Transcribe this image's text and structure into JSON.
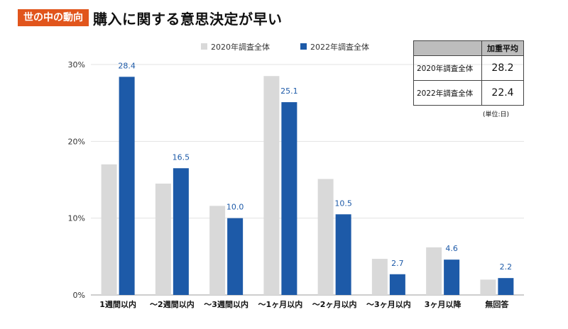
{
  "header": {
    "tag": "世の中の動向",
    "title": "購入に関する意思決定が早い"
  },
  "chart_data": {
    "type": "bar",
    "categories": [
      "1週間以内",
      "〜2週間以内",
      "〜3週間以内",
      "〜1ヶ月以内",
      "〜2ヶ月以内",
      "〜3ヶ月以内",
      "3ヶ月以降",
      "無回答"
    ],
    "series": [
      {
        "name": "2020年調査全体",
        "values": [
          17.0,
          14.5,
          11.6,
          28.5,
          15.1,
          4.7,
          6.2,
          2.0
        ],
        "color": "#d9d9d9"
      },
      {
        "name": "2022年調査全体",
        "values": [
          28.4,
          16.5,
          10.0,
          25.1,
          10.5,
          2.7,
          4.6,
          2.2
        ],
        "color": "#1d5aa8",
        "labels": [
          "28.4",
          "16.5",
          "10.0",
          "25.1",
          "10.5",
          "2.7",
          "4.6",
          "2.2"
        ]
      }
    ],
    "ylim": [
      0,
      30
    ],
    "yticks": [
      0,
      10,
      20,
      30
    ],
    "ytick_labels": [
      "0%",
      "10%",
      "20%",
      "30%"
    ],
    "label_color": "#1d5aa8",
    "grid": true,
    "legend_position": "top"
  },
  "avg_table": {
    "header": "加重平均",
    "rows": [
      {
        "label": "2020年調査全体",
        "value": "28.2"
      },
      {
        "label": "2022年調査全体",
        "value": "22.4"
      }
    ],
    "unit_note": "(単位:日)"
  }
}
